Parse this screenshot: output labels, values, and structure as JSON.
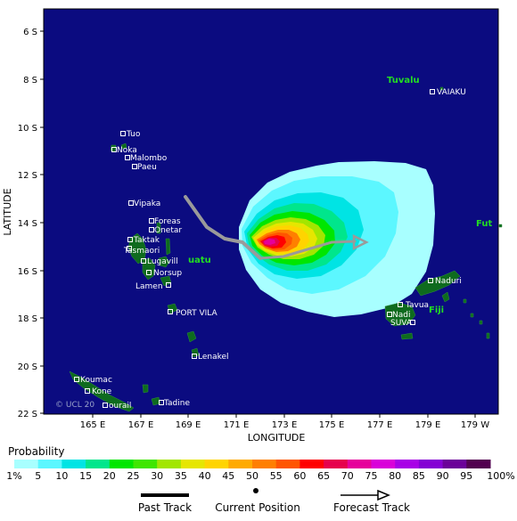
{
  "map": {
    "background_color": "#0b0b80",
    "land_color": "#0e6b1e",
    "latitude_label": "LATITUDE",
    "longitude_label": "LONGITUDE",
    "lat_ticks": [
      "6 S",
      "8 S",
      "10 S",
      "12 S",
      "14 S",
      "16 S",
      "18 S",
      "20 S",
      "22 S"
    ],
    "lon_ticks": [
      "165 E",
      "167 E",
      "169 E",
      "171 E",
      "173 E",
      "175 E",
      "177 E",
      "179 E",
      "179 W"
    ],
    "copyright": "© UCL 20",
    "countries": [
      "Tuvalu",
      "Vanuatu",
      "Fiji",
      "Futuna"
    ],
    "country_labels_visible": [
      "Tuvalu",
      "uatu",
      "Fiji",
      "Fut"
    ],
    "places": [
      "VAIAKU",
      "Tuo",
      "Noka",
      "Malombo",
      "Paeu",
      "Vipaka",
      "Foreas",
      "Onetar",
      "Taktak",
      "Tasmaori",
      "Lugaville",
      "Norsup",
      "Lamen",
      "PORT VILA",
      "Lenakel",
      "Tadine",
      "Koumac",
      "Kone",
      "Bourail",
      "Naduri",
      "Tavua",
      "Nadi",
      "SUVA"
    ],
    "place_labels_visible": [
      "VAIAKU",
      "Tuo",
      "Noka",
      "Malombo",
      "Paeu",
      "Vipaka",
      "Foreas",
      "Onetar",
      "Taktak",
      "Tasmaori",
      "Lugavill",
      "Norsup",
      "Lamen",
      "PORT VILA",
      "Lenakel",
      "Tadine",
      "Koumac",
      "Kone",
      "ourail",
      "Naduri",
      "Tavua",
      "Nadi",
      "SUVA"
    ]
  },
  "legend": {
    "title": "Probability",
    "labels": [
      "1%",
      "5",
      "10",
      "15",
      "20",
      "25",
      "30",
      "35",
      "40",
      "45",
      "50",
      "55",
      "60",
      "65",
      "70",
      "75",
      "80",
      "85",
      "90",
      "95",
      "100%"
    ],
    "colors": [
      "#a8ffff",
      "#5cf7ff",
      "#00e4e4",
      "#00e68c",
      "#00e600",
      "#40e600",
      "#a2e600",
      "#e6e600",
      "#ffd400",
      "#ffaa00",
      "#ff7f00",
      "#ff5500",
      "#ff0000",
      "#e6004c",
      "#e6009b",
      "#d900d9",
      "#a800e6",
      "#8400d4",
      "#6b0099",
      "#52004f"
    ]
  },
  "track_legend": {
    "past": "Past Track",
    "current": "Current Position",
    "forecast": "Forecast Track"
  }
}
